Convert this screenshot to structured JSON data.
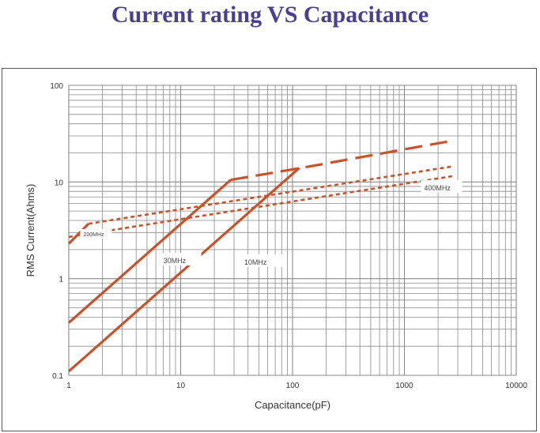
{
  "page": {
    "title": "Current rating VS Capacitance"
  },
  "chart_data": {
    "type": "line",
    "title": "Current rating VS Capacitance",
    "xlabel": "Capacitance(pF)",
    "ylabel": "RMS Current(Ahms)",
    "xscale": "log",
    "yscale": "log",
    "xlim": [
      1,
      10000
    ],
    "ylim": [
      0.1,
      100
    ],
    "grid": true,
    "x_ticks": [
      1,
      10,
      100,
      1000,
      10000
    ],
    "x_tick_labels": [
      "1",
      "10",
      "100",
      "1000",
      "10000"
    ],
    "y_ticks": [
      0.1,
      1,
      10,
      100
    ],
    "y_tick_labels": [
      "0.1",
      "1",
      "10",
      "100"
    ],
    "line_color": "#c8522a",
    "grid_color": "#8a8a8a",
    "series": [
      {
        "name": "30MHz",
        "style": "solid",
        "points": [
          [
            1,
            0.35
          ],
          [
            28,
            10.5
          ]
        ]
      },
      {
        "name": "30MHz",
        "style": "dashed",
        "points": [
          [
            28,
            10.5
          ],
          [
            120,
            14
          ],
          [
            2800,
            27
          ]
        ]
      },
      {
        "name": "10MHz",
        "style": "solid",
        "points": [
          [
            1,
            0.11
          ],
          [
            115,
            14
          ]
        ]
      },
      {
        "name": "200MHz",
        "style": "solid",
        "points": [
          [
            1,
            2.3
          ],
          [
            1.5,
            3.7
          ]
        ]
      },
      {
        "name": "400MHz",
        "style": "dotted",
        "points": [
          [
            1.5,
            3.7
          ],
          [
            2700,
            14.5
          ]
        ]
      },
      {
        "name": "200MHz",
        "style": "dotted",
        "points": [
          [
            1,
            2.7
          ],
          [
            2700,
            11.5
          ]
        ]
      }
    ],
    "annotations": [
      {
        "text": "400MHz",
        "x": 1500,
        "y": 8.2
      },
      {
        "text": "200MHz",
        "x": 1.35,
        "y": 2.75
      },
      {
        "text": "30MHz",
        "x": 7.0,
        "y": 1.45
      },
      {
        "text": "10MHz",
        "x": 37,
        "y": 1.4
      }
    ]
  }
}
